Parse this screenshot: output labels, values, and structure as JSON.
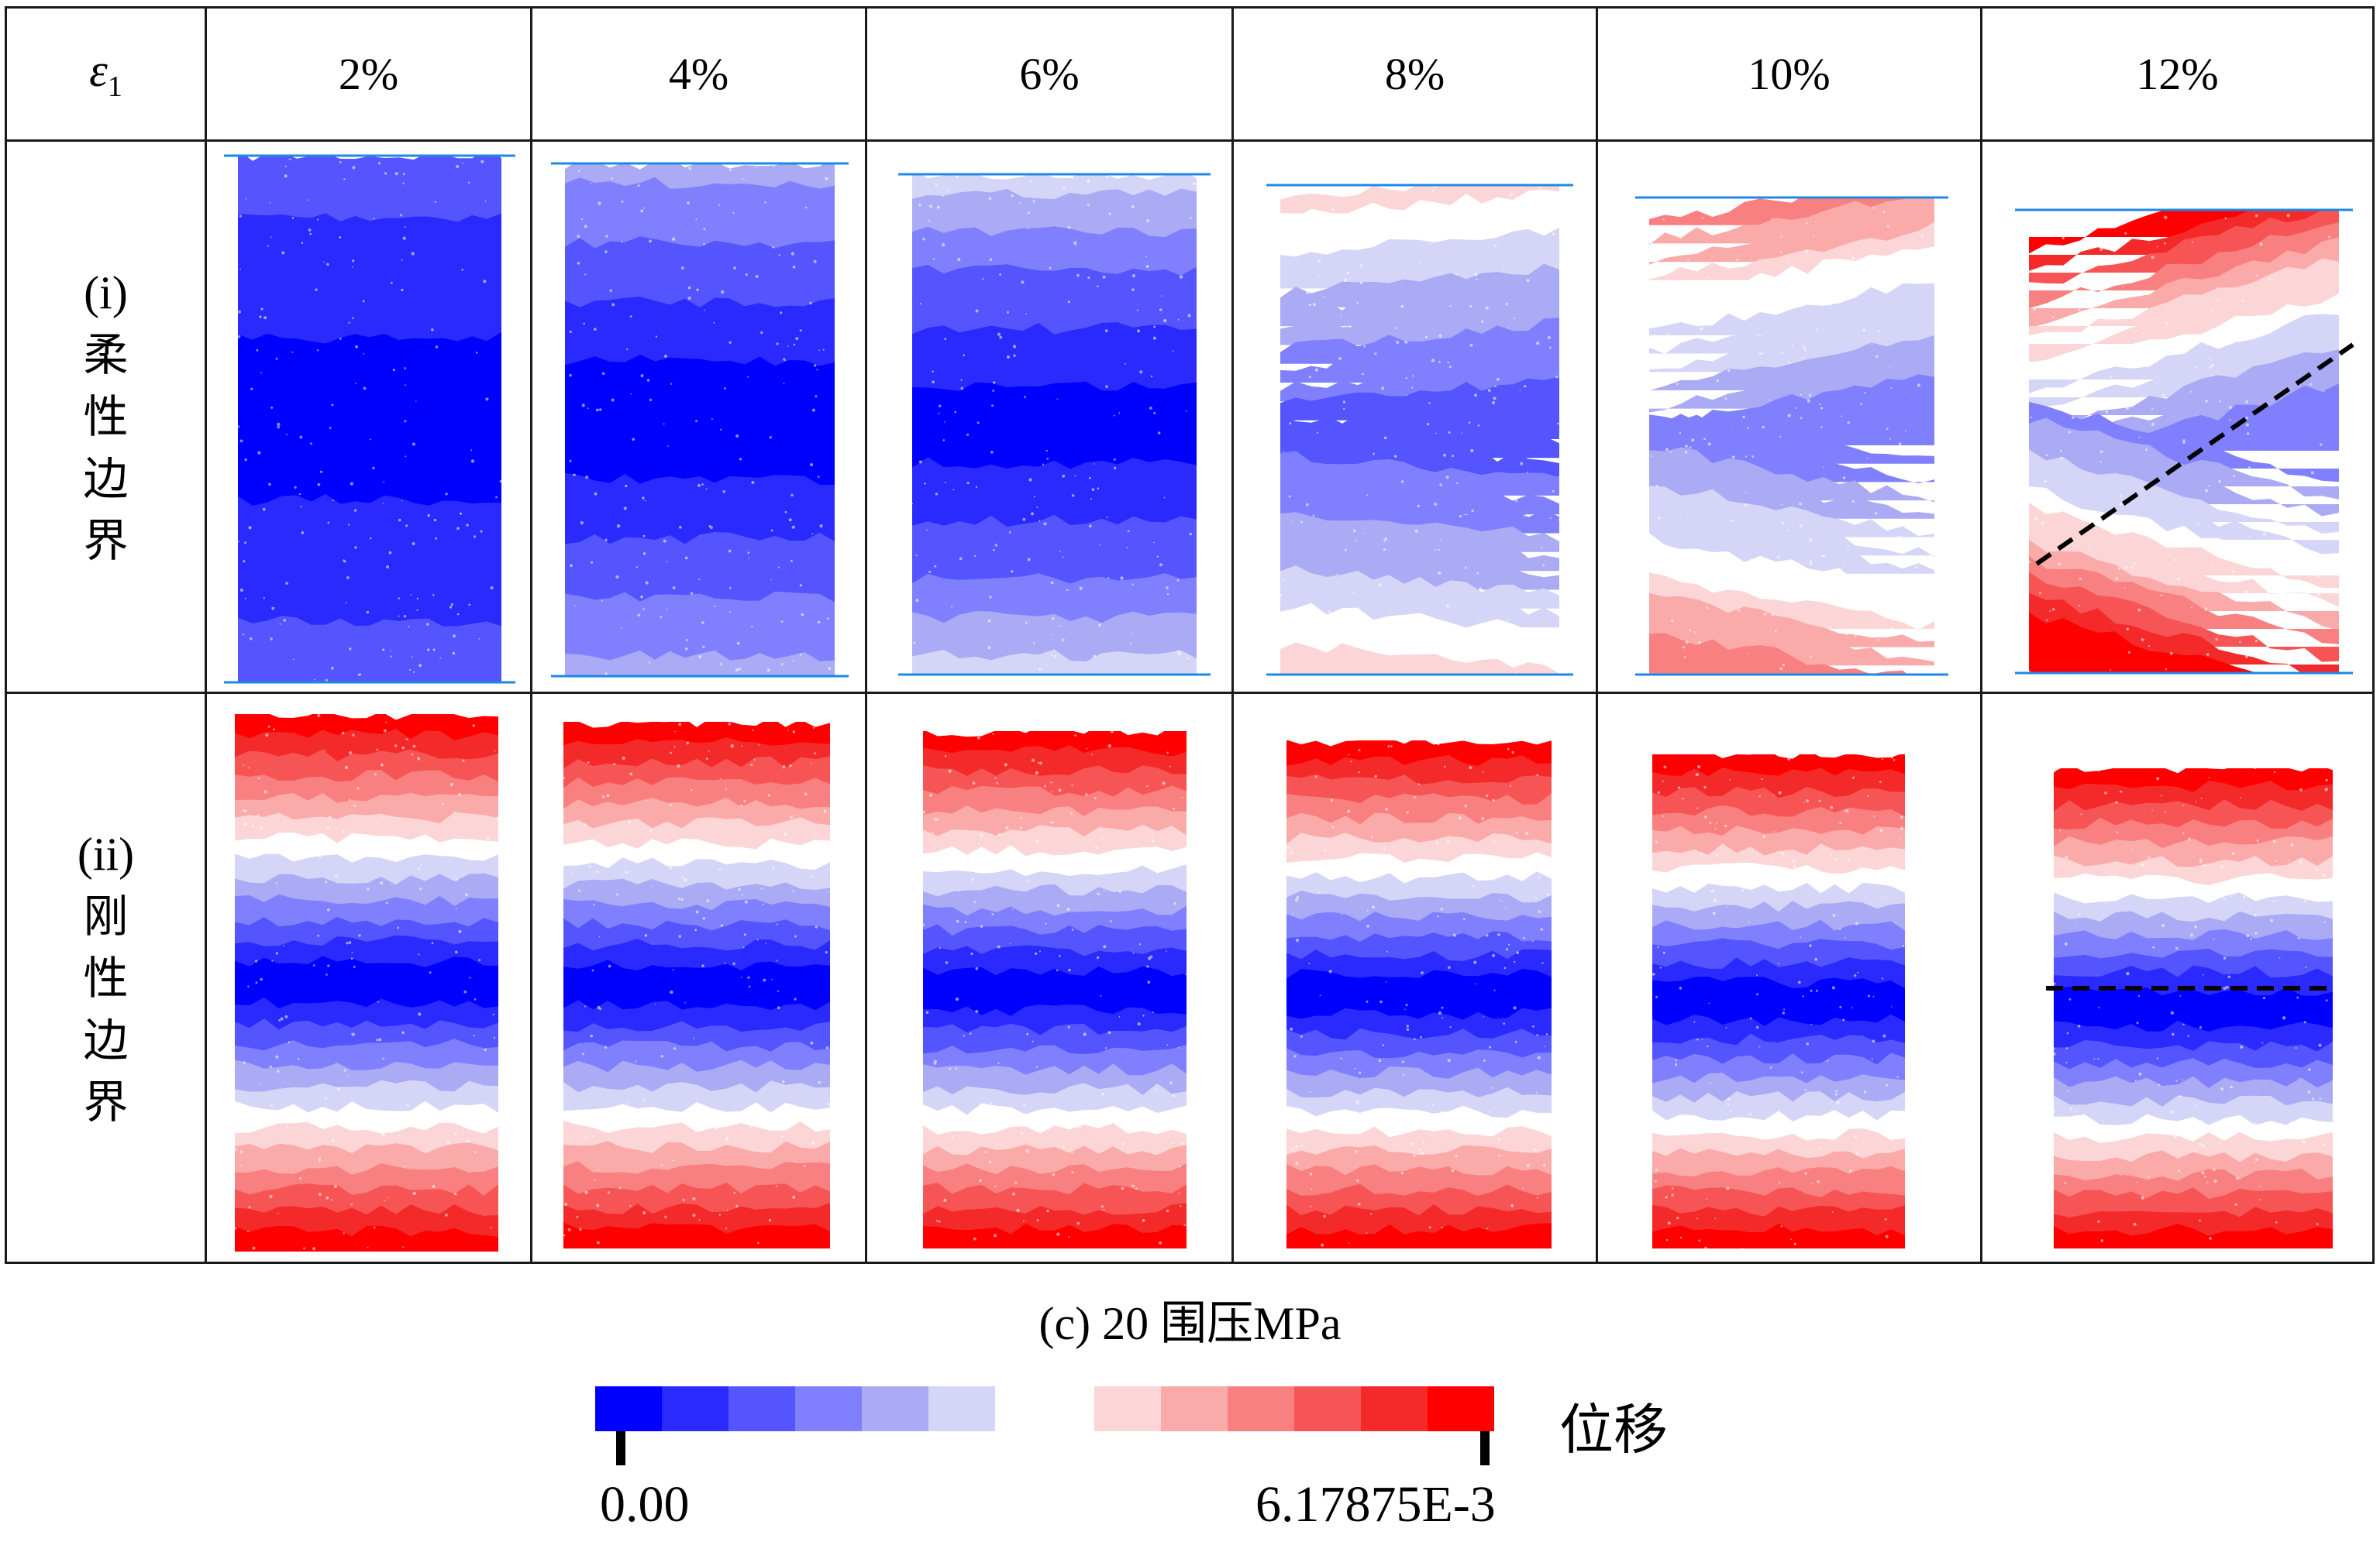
{
  "header": {
    "strain_symbol": "ε",
    "strain_subscript": "1",
    "strains": [
      "2%",
      "4%",
      "6%",
      "8%",
      "10%",
      "12%"
    ]
  },
  "rows": [
    {
      "id": "flexible",
      "label_paren": "(i)",
      "label_chars": [
        "柔",
        "性",
        "边",
        "界"
      ]
    },
    {
      "id": "rigid",
      "label_paren": "(ii)",
      "label_chars": [
        "刚",
        "性",
        "边",
        "界"
      ]
    }
  ],
  "caption": {
    "prefix": "(c) 20 ",
    "cjk": "围压",
    "suffix": "MPa"
  },
  "legend": {
    "title": "位移",
    "min_label": "0.00",
    "max_label": "6.17875E-3",
    "blue_colors": [
      "#0000ff",
      "#2a2aff",
      "#5555ff",
      "#8080ff",
      "#aaaaf5",
      "#d5d5f8"
    ],
    "red_colors": [
      "#fcd6d6",
      "#fbaaaa",
      "#f98080",
      "#f75555",
      "#f42a2a",
      "#ff0000"
    ]
  }
}
